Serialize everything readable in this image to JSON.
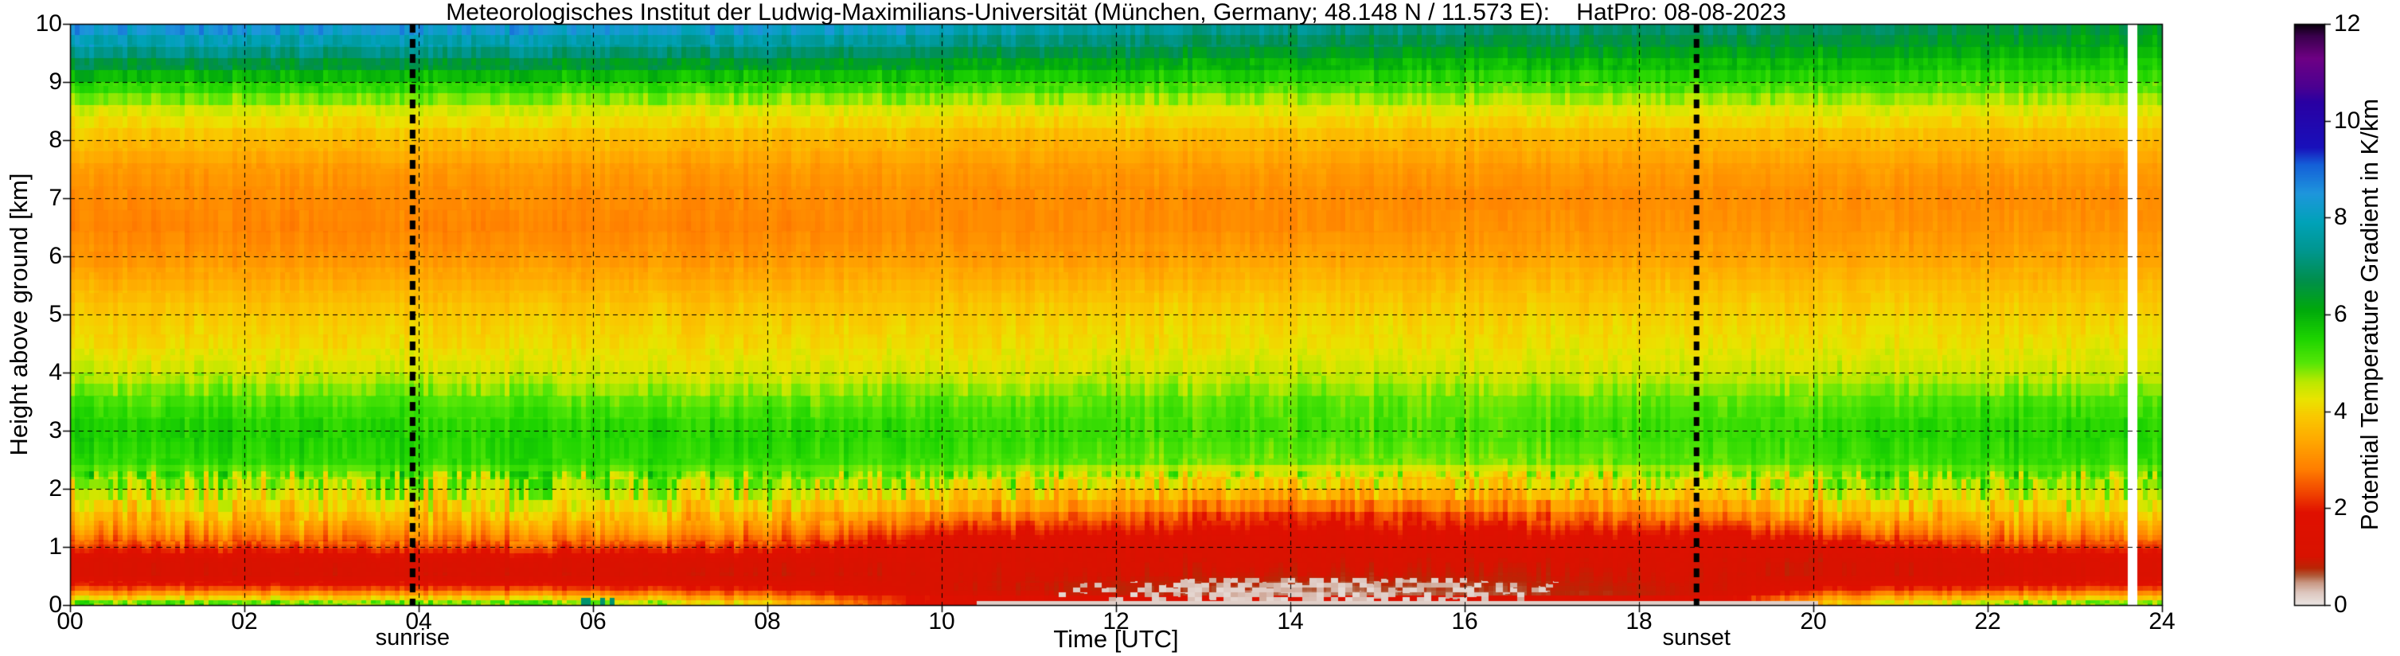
{
  "page": {
    "background": "#ffffff"
  },
  "chart_data": {
    "type": "heatmap",
    "title": "Meteorologisches Institut der Ludwig-Maximilians-Universität (München, Germany; 48.148 N / 11.573 E):    HatPro: 08-08-2023",
    "xlabel": "Time [UTC]",
    "ylabel": "Height above ground [km]",
    "colorbar_label": "Potential Temperature Gradient in K/km",
    "xlim": [
      0,
      24
    ],
    "ylim": [
      0,
      10
    ],
    "clim": [
      0,
      12
    ],
    "x_tick_values": [
      0,
      2,
      4,
      6,
      8,
      10,
      12,
      14,
      16,
      18,
      20,
      22,
      24
    ],
    "x_tick_labels": [
      "00",
      "02",
      "04",
      "06",
      "08",
      "10",
      "12",
      "14",
      "16",
      "18",
      "20",
      "22",
      "24"
    ],
    "y_tick_values": [
      0,
      1,
      2,
      3,
      4,
      5,
      6,
      7,
      8,
      9,
      10
    ],
    "y_tick_labels": [
      "0",
      "1",
      "2",
      "3",
      "4",
      "5",
      "6",
      "7",
      "8",
      "9",
      "10"
    ],
    "colorbar_tick_values": [
      0,
      2,
      4,
      6,
      8,
      10,
      12
    ],
    "colorbar_tick_labels": [
      "0",
      "2",
      "4",
      "6",
      "8",
      "10",
      "12"
    ],
    "grid": {
      "style": "dashed",
      "x_step_hours": 2,
      "y_step_km": 1
    },
    "annotations": [
      {
        "label": "sunrise",
        "time_utc": 3.93
      },
      {
        "label": "sunset",
        "time_utc": 18.66
      }
    ],
    "missing_data_intervals_utc": [
      [
        23.6,
        23.71
      ]
    ],
    "colormap_stops": [
      [
        0.0,
        "#ebe5e2"
      ],
      [
        0.25,
        "#ddc6be"
      ],
      [
        0.45,
        "#c99884"
      ],
      [
        0.6,
        "#b05a38"
      ],
      [
        0.75,
        "#b92605"
      ],
      [
        1.0,
        "#d81200"
      ],
      [
        1.9,
        "#e01000"
      ],
      [
        2.3,
        "#f04300"
      ],
      [
        2.8,
        "#ff7e00"
      ],
      [
        3.4,
        "#ffa900"
      ],
      [
        3.9,
        "#f9c900"
      ],
      [
        4.25,
        "#e9e400"
      ],
      [
        4.6,
        "#bce800"
      ],
      [
        5.0,
        "#55e607"
      ],
      [
        5.5,
        "#1dd400"
      ],
      [
        6.1,
        "#00a90c"
      ],
      [
        6.7,
        "#008f4c"
      ],
      [
        7.3,
        "#00968e"
      ],
      [
        7.9,
        "#00a2b8"
      ],
      [
        8.5,
        "#1e96dc"
      ],
      [
        9.1,
        "#145fd8"
      ],
      [
        9.45,
        "#1810bb"
      ],
      [
        10.4,
        "#2a00a2"
      ],
      [
        10.7,
        "#4b0091"
      ],
      [
        11.3,
        "#6e0084"
      ],
      [
        11.75,
        "#3a004d"
      ],
      [
        12.0,
        "#08000b"
      ]
    ],
    "times_utc": [
      0,
      2,
      4,
      6,
      8,
      10,
      12,
      14,
      16,
      18,
      19,
      20,
      22,
      24
    ],
    "heights_km": [
      0,
      0.08,
      0.15,
      0.3,
      0.5,
      0.75,
      1,
      1.25,
      1.5,
      2,
      2.5,
      3,
      3.5,
      4,
      4.5,
      5,
      5.5,
      6,
      6.5,
      7,
      7.5,
      8,
      8.5,
      9,
      9.5,
      10
    ],
    "values_layout": "values_k_per_km[i][j] = potential temperature gradient at times_utc[i] and heights_km[j] (bottom to top)",
    "values_k_per_km": [
      [
        5.4,
        4.6,
        3.6,
        2.2,
        1.2,
        1.2,
        2.2,
        3.0,
        3.6,
        4.6,
        5.3,
        5.6,
        5.2,
        4.5,
        4.1,
        3.9,
        3.5,
        3.1,
        2.9,
        3.0,
        3.2,
        3.7,
        4.4,
        5.6,
        7.3,
        8.8
      ],
      [
        5.4,
        4.6,
        3.6,
        2.2,
        1.1,
        1.2,
        2.3,
        3.1,
        3.7,
        4.6,
        5.4,
        5.6,
        5.1,
        4.5,
        4.1,
        3.9,
        3.5,
        3.1,
        2.9,
        3.0,
        3.2,
        3.7,
        4.4,
        5.6,
        7.2,
        8.7
      ],
      [
        5.3,
        4.5,
        3.5,
        2.1,
        1.1,
        1.3,
        2.4,
        3.1,
        3.7,
        4.6,
        5.4,
        5.5,
        5.1,
        4.5,
        4.1,
        3.9,
        3.5,
        3.1,
        2.9,
        3.0,
        3.2,
        3.7,
        4.4,
        5.6,
        7.2,
        8.7
      ],
      [
        5.2,
        4.4,
        3.4,
        2.0,
        1.1,
        1.3,
        2.4,
        3.2,
        3.8,
        4.7,
        5.4,
        5.5,
        5.0,
        4.4,
        4.1,
        3.9,
        3.5,
        3.1,
        2.9,
        3.0,
        3.2,
        3.7,
        4.4,
        5.5,
        7.1,
        8.6
      ],
      [
        4.2,
        3.4,
        2.8,
        1.7,
        1.0,
        1.2,
        2.2,
        3.0,
        3.6,
        4.6,
        5.3,
        5.5,
        5.0,
        4.4,
        4.1,
        3.9,
        3.5,
        3.1,
        2.9,
        3.0,
        3.2,
        3.6,
        4.3,
        5.5,
        7.0,
        8.5
      ],
      [
        0.8,
        2.2,
        1.2,
        1.0,
        1.1,
        1.2,
        1.3,
        2.0,
        2.8,
        4.4,
        5.2,
        5.4,
        5.0,
        4.4,
        4.1,
        3.9,
        3.6,
        3.2,
        3.0,
        3.0,
        3.2,
        3.6,
        4.3,
        5.4,
        6.8,
        8.2
      ],
      [
        0.2,
        2.8,
        0.9,
        0.8,
        1.0,
        1.2,
        1.4,
        1.9,
        2.6,
        4.0,
        5.0,
        5.3,
        5.0,
        4.5,
        4.2,
        4.0,
        3.6,
        3.2,
        3.0,
        3.0,
        3.2,
        3.6,
        4.3,
        5.4,
        6.6,
        7.8
      ],
      [
        0.2,
        2.6,
        0.5,
        0.6,
        0.9,
        1.1,
        1.3,
        1.7,
        2.1,
        3.7,
        4.9,
        5.2,
        5.0,
        4.5,
        4.2,
        4.0,
        3.7,
        3.3,
        3.0,
        3.0,
        3.2,
        3.6,
        4.3,
        5.3,
        6.4,
        7.5
      ],
      [
        0.2,
        2.7,
        0.6,
        0.7,
        0.9,
        1.1,
        1.4,
        1.8,
        2.4,
        3.9,
        4.9,
        5.2,
        5.0,
        4.5,
        4.2,
        4.0,
        3.7,
        3.3,
        3.1,
        3.0,
        3.2,
        3.6,
        4.3,
        5.3,
        6.3,
        7.3
      ],
      [
        0.3,
        2.8,
        0.8,
        0.9,
        1.0,
        1.2,
        1.5,
        2.0,
        2.8,
        4.1,
        5.0,
        5.3,
        5.0,
        4.5,
        4.2,
        4.0,
        3.7,
        3.3,
        3.1,
        3.0,
        3.2,
        3.6,
        4.3,
        5.3,
        6.3,
        7.2
      ],
      [
        0.3,
        2.4,
        1.1,
        1.0,
        1.0,
        1.1,
        1.4,
        1.8,
        2.8,
        4.2,
        5.1,
        5.3,
        5.0,
        4.5,
        4.2,
        4.0,
        3.7,
        3.3,
        3.1,
        3.0,
        3.2,
        3.6,
        4.3,
        5.3,
        6.2,
        7.1
      ],
      [
        3.6,
        3.4,
        2.8,
        1.7,
        1.0,
        1.0,
        1.4,
        2.5,
        3.3,
        4.4,
        5.2,
        5.4,
        5.0,
        4.5,
        4.2,
        4.0,
        3.7,
        3.3,
        3.1,
        3.0,
        3.2,
        3.6,
        4.3,
        5.3,
        6.2,
        7.0
      ],
      [
        5.0,
        4.2,
        3.3,
        2.0,
        1.2,
        1.3,
        2.2,
        3.0,
        3.6,
        4.6,
        5.3,
        5.5,
        5.1,
        4.5,
        4.2,
        4.0,
        3.7,
        3.3,
        3.1,
        3.0,
        3.2,
        3.6,
        4.3,
        5.2,
        6.0,
        6.7
      ],
      [
        5.2,
        4.4,
        3.4,
        2.1,
        1.3,
        1.4,
        2.3,
        3.1,
        3.7,
        4.6,
        5.3,
        5.5,
        5.1,
        4.5,
        4.2,
        4.0,
        3.7,
        3.3,
        3.1,
        3.0,
        3.2,
        3.6,
        4.3,
        5.2,
        5.9,
        6.5
      ]
    ]
  }
}
